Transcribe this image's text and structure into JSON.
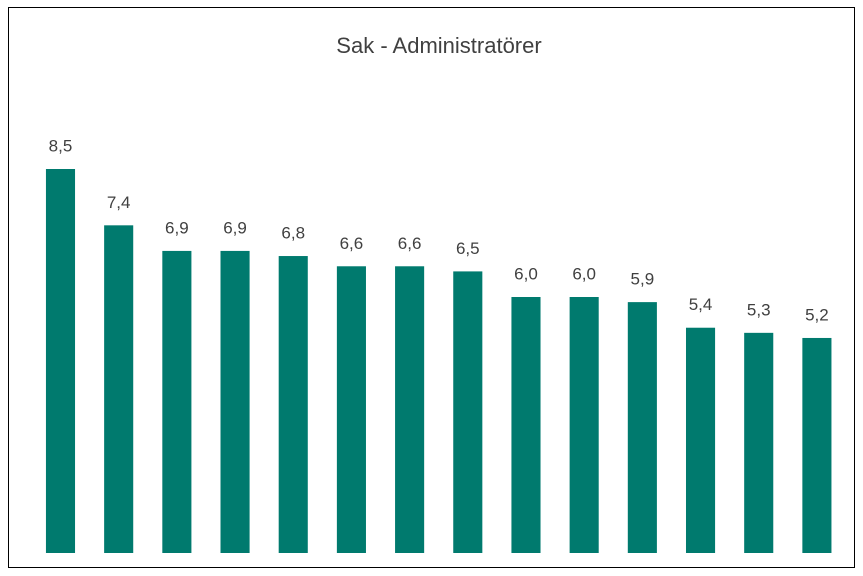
{
  "chart_data": {
    "type": "bar",
    "title": "Sak - Administratörer",
    "categories": [
      null,
      null,
      null,
      null,
      null,
      null,
      null,
      null,
      null,
      null,
      null,
      null,
      null,
      null
    ],
    "values": [
      8.5,
      7.4,
      6.9,
      6.9,
      6.8,
      6.6,
      6.6,
      6.5,
      6.0,
      6.0,
      5.9,
      5.4,
      5.3,
      5.2
    ],
    "value_labels": [
      "8,5",
      "7,4",
      "6,9",
      "6,9",
      "6,8",
      "6,6",
      "6,6",
      "6,5",
      "6,0",
      "6,0",
      "5,9",
      "5,4",
      "5,3",
      "5,2"
    ],
    "color": "#007A6E",
    "ylim": [
      1,
      9
    ],
    "grid": false
  }
}
